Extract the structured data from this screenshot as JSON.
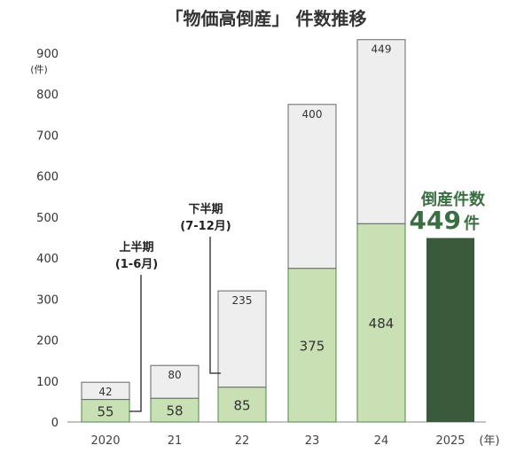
{
  "chart_data": {
    "type": "bar",
    "title": "「物価高倒産」 件数推移",
    "categories": [
      "2020",
      "21",
      "22",
      "23",
      "24",
      "2025"
    ],
    "x_unit": "(年)",
    "y_unit": "(件)",
    "ylim": [
      0,
      900
    ],
    "yticks": [
      0,
      100,
      200,
      300,
      400,
      500,
      600,
      700,
      800,
      900
    ],
    "grid": false,
    "series": [
      {
        "name": "上半期",
        "values": [
          55,
          58,
          85,
          375,
          484,
          null
        ]
      },
      {
        "name": "下半期",
        "values": [
          42,
          80,
          235,
          400,
          449,
          null
        ]
      }
    ],
    "highlight": {
      "category": "2025",
      "value": 449
    },
    "annotations": {
      "h1_line1": "上半期",
      "h1_line2": "(1-6月)",
      "h2_line1": "下半期",
      "h2_line2": "(7-12月)",
      "callout_label": "倒産件数",
      "callout_value": "449",
      "callout_unit": "件"
    },
    "colors": {
      "h1": "#c8e0b4",
      "h1_stroke": "#4c8a4a",
      "h2": "#eeeeef",
      "h2_stroke": "#666666",
      "highlight": "#3a5a3c",
      "callout": "#3c6e44",
      "axis": "#888888"
    }
  }
}
